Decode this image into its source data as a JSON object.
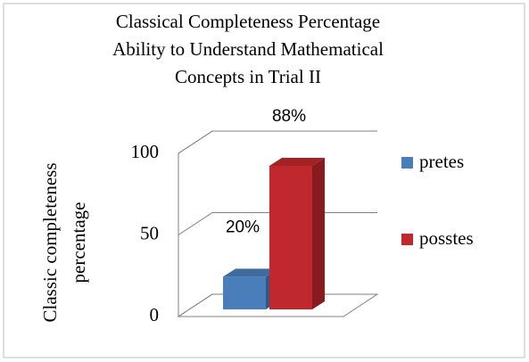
{
  "chart_data": {
    "type": "bar3d",
    "title": [
      "Classical Completeness Percentage",
      "Ability to Understand Mathematical",
      "Concepts in Trial II"
    ],
    "ylabel": [
      "Classic completeness",
      "percentage"
    ],
    "categories": [
      null
    ],
    "series": [
      {
        "name": "pretes",
        "color": "#4a7ebb",
        "values": [
          20
        ],
        "value_labels": [
          "20%"
        ]
      },
      {
        "name": "posstes",
        "color": "#c0282d",
        "values": [
          88
        ],
        "value_labels": [
          "88%"
        ]
      }
    ],
    "ylim": [
      0,
      100
    ],
    "yticks": [
      0,
      50,
      100
    ],
    "grid": true,
    "legend": "right"
  }
}
